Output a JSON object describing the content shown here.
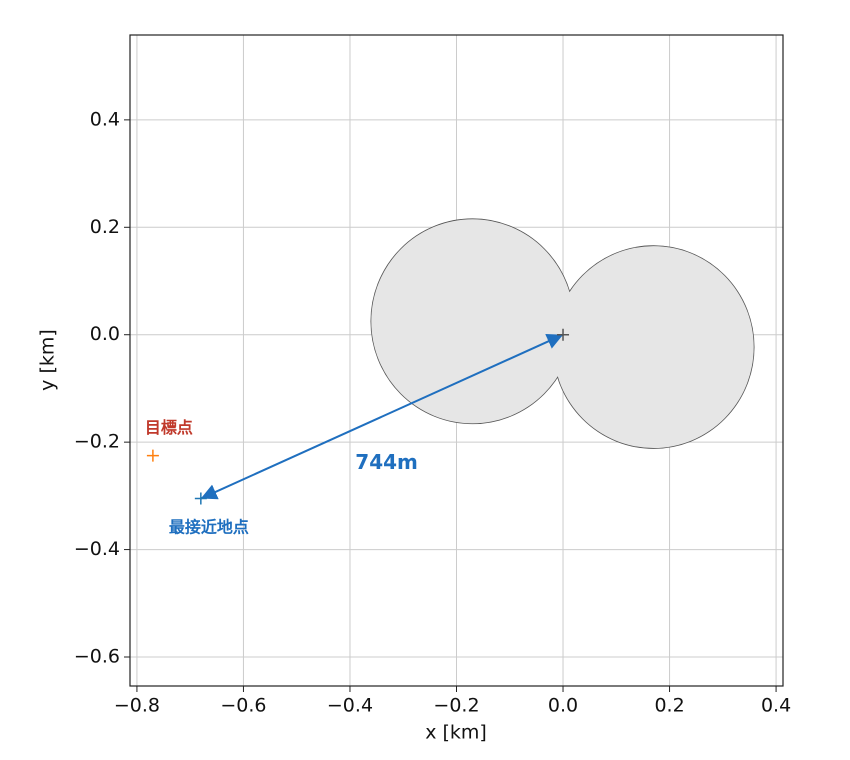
{
  "chart_data": {
    "type": "scatter",
    "xlabel": "x [km]",
    "ylabel": "y [km]",
    "xlim": [
      -0.813,
      0.413
    ],
    "ylim": [
      -0.654,
      0.558
    ],
    "xticks": [
      {
        "value": -0.8,
        "label": "−0.8"
      },
      {
        "value": -0.6,
        "label": "−0.6"
      },
      {
        "value": -0.4,
        "label": "−0.4"
      },
      {
        "value": -0.2,
        "label": "−0.2"
      },
      {
        "value": 0,
        "label": "0.0"
      },
      0.2,
      0.4
    ],
    "yticks": [
      {
        "value": -0.6,
        "label": "−0.6"
      },
      {
        "value": -0.4,
        "label": "−0.4"
      },
      {
        "value": -0.2,
        "label": "−0.2"
      },
      {
        "value": 0,
        "label": "0.0"
      },
      0.2,
      0.4
    ],
    "grid": true,
    "shapes": [
      {
        "cx": -0.17,
        "cy": 0.025,
        "r": 0.19
      },
      {
        "cx": 0.17,
        "cy": -0.023,
        "r": 0.188
      }
    ],
    "shape_color": "#e6e6e6",
    "markers": [
      {
        "x": -0.77,
        "y": -0.225,
        "color": "#ff7f0e"
      },
      {
        "x": -0.68,
        "y": -0.305,
        "color": "#1f77b4"
      },
      {
        "x": 0,
        "y": 0,
        "color": "#555555"
      }
    ],
    "arrow": {
      "x": [
        0,
        -0.68
      ],
      "y": [
        0,
        -0.305
      ],
      "color": "#1f6fbf"
    },
    "annotations": [
      {
        "text": "目標点",
        "x": -0.785,
        "y": -0.175,
        "color": "#c0392b"
      },
      {
        "text": "最接近地点",
        "x": -0.74,
        "y": -0.36,
        "color": "#1f6fbf"
      },
      {
        "text": "744m",
        "x": -0.39,
        "y": -0.24,
        "color": "#1f6fbf"
      }
    ]
  }
}
